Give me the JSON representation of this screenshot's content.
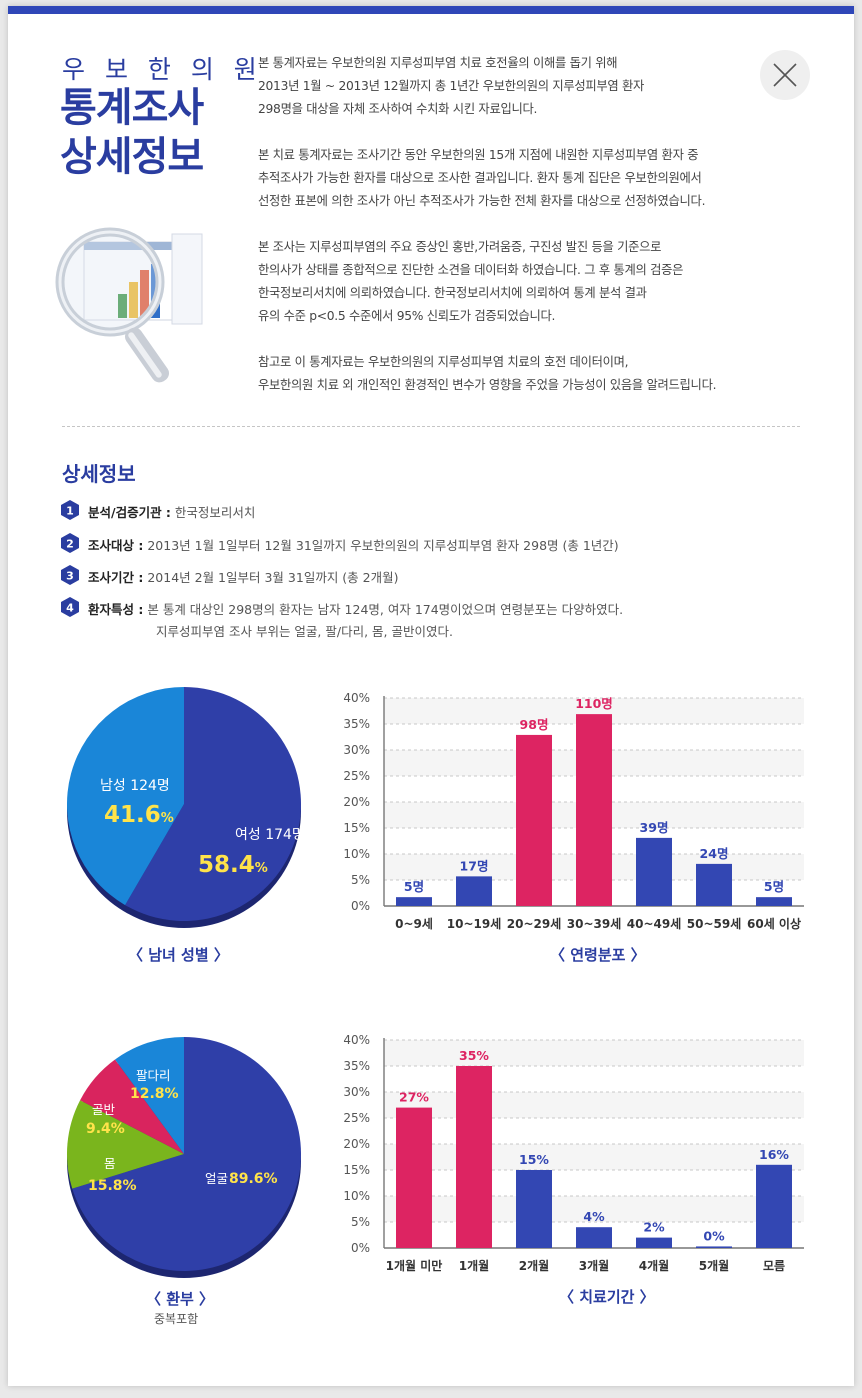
{
  "header": {
    "clinic_name": "우 보 한 의 원",
    "title_line1": "통계조사",
    "title_line2": "상세정보",
    "intro": [
      [
        "본 통계자료는 우보한의원 지루성피부염 치료 호전율의 이해를 돕기 위해",
        "2013년 1월 ~ 2013년 12월까지 총 1년간 우보한의원의 지루성피부염 환자",
        "298명을 대상을 자체 조사하여 수치화 시킨 자료입니다."
      ],
      [
        "본 치료 통계자료는 조사기간 동안 우보한의원 15개 지점에 내원한 지루성피부염 환자 중",
        "추적조사가 가능한 환자를 대상으로 조사한 결과입니다. 환자 통계 집단은 우보한의원에서",
        "선정한 표본에 의한 조사가 아닌 추적조사가 가능한 전체 환자를 대상으로 선정하였습니다."
      ],
      [
        "본 조사는 지루성피부염의 주요 증상인 홍반,가려움증, 구진성 발진 등을 기준으로",
        "한의사가 상태를 종합적으로 진단한 소견을 데이터화 하였습니다. 그 후 통계의 검증은",
        "한국정보리서치에 의뢰하였습니다. 한국정보리서치에 의뢰하여 통계 분석 결과",
        "유의 수준 p<0.5 수준에서 95% 신뢰도가 검증되었습니다."
      ],
      [
        "참고로 이 통계자료는 우보한의원의 지루성피부염 치료의 호전 데이터이며,",
        "우보한의원 치료 외 개인적인 환경적인 변수가 영향을 주었을 가능성이 있음을 알려드립니다."
      ]
    ]
  },
  "detail": {
    "title": "상세정보",
    "items": [
      {
        "num": "1",
        "label": "분석/검증기관 :",
        "value": "한국정보리서치"
      },
      {
        "num": "2",
        "label": "조사대상 :",
        "value": "2013년 1월 1일부터 12월 31일까지 우보한의원의 지루성피부염 환자 298명 (총 1년간)"
      },
      {
        "num": "3",
        "label": "조사기간 :",
        "value": "2014년 2월 1일부터 3월 31일까지 (총 2개월)"
      },
      {
        "num": "4",
        "label": "환자특성 :",
        "value": "본 통계 대상인 298명의 환자는 남자 124명, 여자 174명이었으며 연령분포는 다양하였다.",
        "value2": "지루성피부염 조사 부위는 얼굴, 팔/다리, 몸, 골반이였다."
      }
    ]
  },
  "chart_data": [
    {
      "type": "pie",
      "caption": "〈 남녀 성별 〉",
      "slices": [
        {
          "label": "여성 174명",
          "value": 58.4,
          "value_text": "58.4",
          "color": "#2f3fa8"
        },
        {
          "label": "남성 124명",
          "value": 41.6,
          "value_text": "41.6",
          "color": "#1a86d8"
        }
      ]
    },
    {
      "type": "bar",
      "caption": "〈 연령분포 〉",
      "categories": [
        "0~9세",
        "10~19세",
        "20~29세",
        "30~39세",
        "40~49세",
        "50~59세",
        "60세 이상"
      ],
      "values": [
        1.7,
        5.7,
        32.9,
        36.9,
        13.1,
        8.1,
        1.7
      ],
      "labels": [
        "5명",
        "17명",
        "98명",
        "110명",
        "39명",
        "24명",
        "5명"
      ],
      "highlight": [
        false,
        false,
        true,
        true,
        false,
        false,
        false
      ],
      "yticks": [
        "0%",
        "5%",
        "10%",
        "15%",
        "20%",
        "25%",
        "30%",
        "35%",
        "40%"
      ],
      "ylim": [
        0,
        40
      ]
    },
    {
      "type": "pie",
      "caption": "〈 환부 〉",
      "caption_sub": "중복포함",
      "slices": [
        {
          "label": "얼굴",
          "value": 89.6,
          "value_text": "89.6%",
          "color": "#2f3fa8"
        },
        {
          "label": "몸",
          "value": 15.8,
          "value_text": "15.8%",
          "color": "#7ab51d"
        },
        {
          "label": "골반",
          "value": 9.4,
          "value_text": "9.4%",
          "color": "#d9245e"
        },
        {
          "label": "팔다리",
          "value": 12.8,
          "value_text": "12.8%",
          "color": "#1a86d8"
        }
      ]
    },
    {
      "type": "bar",
      "caption": "〈 치료기간 〉",
      "categories": [
        "1개월 미만",
        "1개월",
        "2개월",
        "3개월",
        "4개월",
        "5개월",
        "모름"
      ],
      "values": [
        27,
        35,
        15,
        4,
        2,
        0.3,
        16
      ],
      "labels": [
        "27%",
        "35%",
        "15%",
        "4%",
        "2%",
        "0%",
        "16%"
      ],
      "highlight": [
        true,
        true,
        false,
        false,
        false,
        false,
        false
      ],
      "yticks": [
        "0%",
        "5%",
        "10%",
        "15%",
        "20%",
        "25%",
        "30%",
        "35%",
        "40%"
      ],
      "ylim": [
        0,
        40
      ]
    }
  ],
  "colors": {
    "accent": "#2a3da0",
    "bar_blue": "#3347b3",
    "bar_pink": "#dd2462",
    "label_yellow": "#ffe34a"
  },
  "icons": {
    "close": "close-icon",
    "magnifier": "magnifier-chart-icon"
  }
}
